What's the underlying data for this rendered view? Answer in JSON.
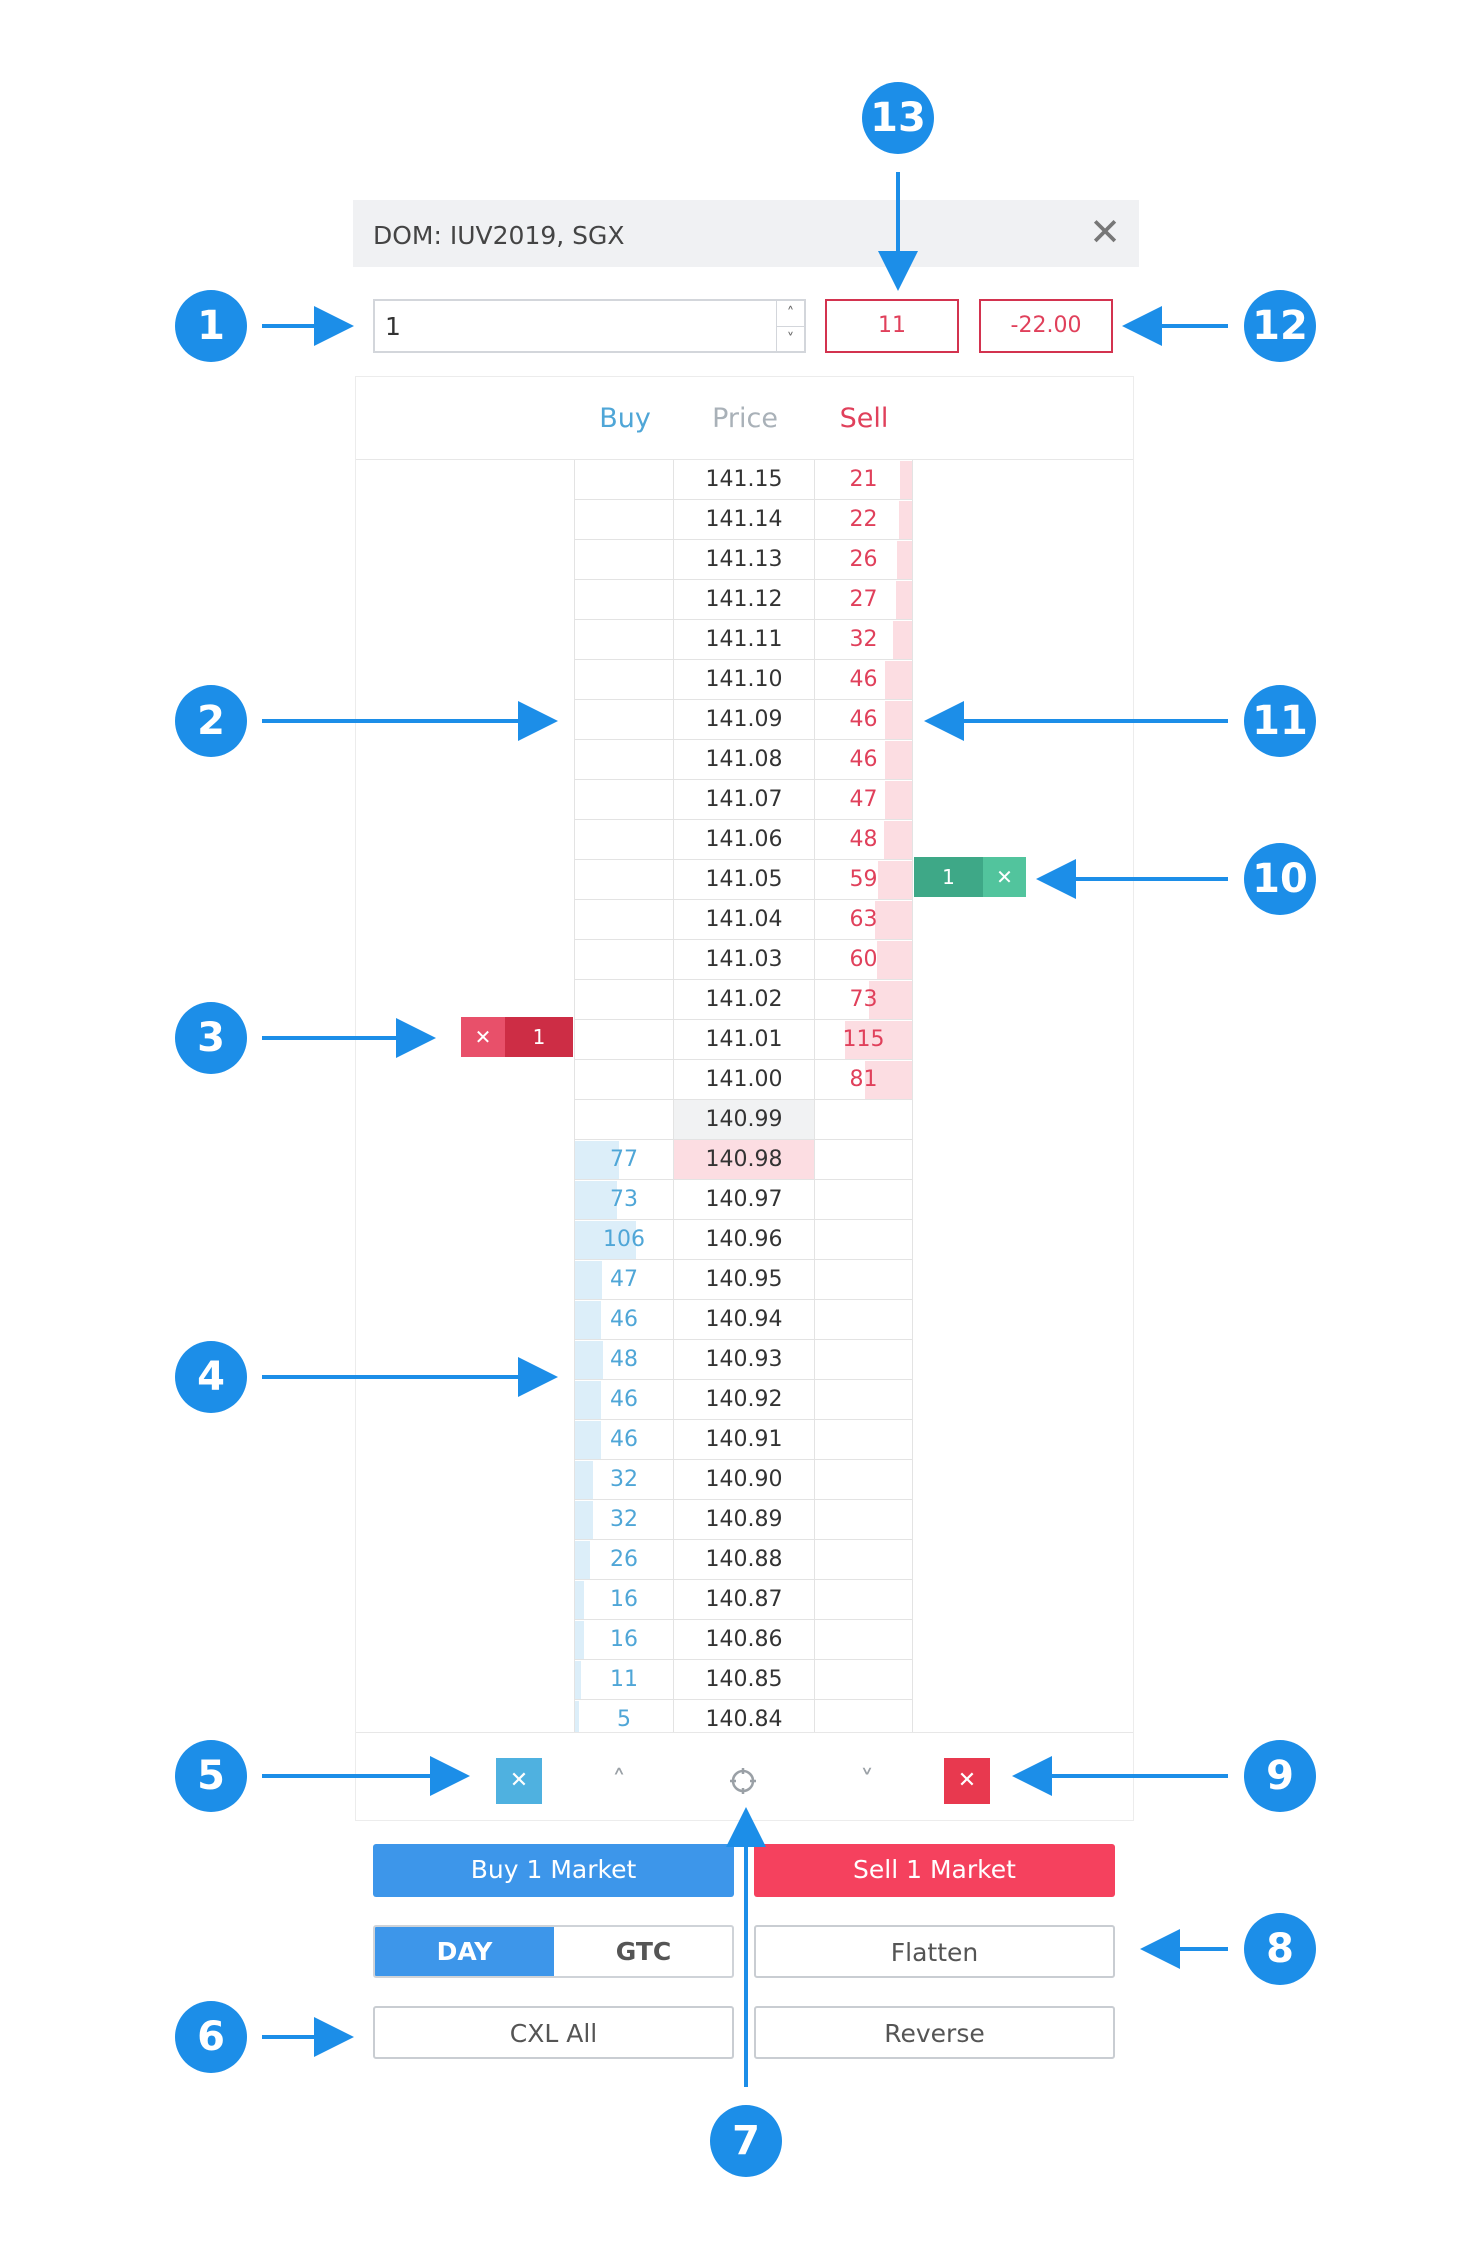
{
  "header": {
    "title": "DOM: IUV2019, SGX",
    "close_icon": "close-icon"
  },
  "quantity": {
    "value": "1",
    "up_icon": "chevron-up-icon",
    "down_icon": "chevron-down-icon"
  },
  "stats": {
    "box_13": "11",
    "box_12": "-22.00"
  },
  "columns": {
    "buy": "Buy",
    "price": "Price",
    "sell": "Sell"
  },
  "rows": [
    {
      "price": "141.15",
      "buy": "",
      "sell": "21"
    },
    {
      "price": "141.14",
      "buy": "",
      "sell": "22"
    },
    {
      "price": "141.13",
      "buy": "",
      "sell": "26"
    },
    {
      "price": "141.12",
      "buy": "",
      "sell": "27"
    },
    {
      "price": "141.11",
      "buy": "",
      "sell": "32"
    },
    {
      "price": "141.10",
      "buy": "",
      "sell": "46"
    },
    {
      "price": "141.09",
      "buy": "",
      "sell": "46"
    },
    {
      "price": "141.08",
      "buy": "",
      "sell": "46"
    },
    {
      "price": "141.07",
      "buy": "",
      "sell": "47"
    },
    {
      "price": "141.06",
      "buy": "",
      "sell": "48"
    },
    {
      "price": "141.05",
      "buy": "",
      "sell": "59"
    },
    {
      "price": "141.04",
      "buy": "",
      "sell": "63"
    },
    {
      "price": "141.03",
      "buy": "",
      "sell": "60"
    },
    {
      "price": "141.02",
      "buy": "",
      "sell": "73"
    },
    {
      "price": "141.01",
      "buy": "",
      "sell": "115"
    },
    {
      "price": "141.00",
      "buy": "",
      "sell": "81"
    },
    {
      "price": "140.99",
      "buy": "",
      "sell": "",
      "highlight": "last"
    },
    {
      "price": "140.98",
      "buy": "77",
      "sell": "",
      "highlight": "pink"
    },
    {
      "price": "140.97",
      "buy": "73",
      "sell": ""
    },
    {
      "price": "140.96",
      "buy": "106",
      "sell": ""
    },
    {
      "price": "140.95",
      "buy": "47",
      "sell": ""
    },
    {
      "price": "140.94",
      "buy": "46",
      "sell": ""
    },
    {
      "price": "140.93",
      "buy": "48",
      "sell": ""
    },
    {
      "price": "140.92",
      "buy": "46",
      "sell": ""
    },
    {
      "price": "140.91",
      "buy": "46",
      "sell": ""
    },
    {
      "price": "140.90",
      "buy": "32",
      "sell": ""
    },
    {
      "price": "140.89",
      "buy": "32",
      "sell": ""
    },
    {
      "price": "140.88",
      "buy": "26",
      "sell": ""
    },
    {
      "price": "140.87",
      "buy": "16",
      "sell": ""
    },
    {
      "price": "140.86",
      "buy": "16",
      "sell": ""
    },
    {
      "price": "140.85",
      "buy": "11",
      "sell": ""
    },
    {
      "price": "140.84",
      "buy": "5",
      "sell": ""
    }
  ],
  "orders": {
    "buy_limit": {
      "qty": "1",
      "price": "141.01",
      "cancel_icon": "close-icon",
      "color": "#cd2d45"
    },
    "sell_limit": {
      "qty": "1",
      "price": "141.05",
      "cancel_icon": "close-icon",
      "color": "#3ea887"
    }
  },
  "toolbar": {
    "cancel_buys_icon": "close-icon",
    "scroll_up_icon": "chevron-up-icon",
    "center_icon": "crosshair-icon",
    "scroll_down_icon": "chevron-down-icon",
    "cancel_sells_icon": "close-icon"
  },
  "buttons": {
    "buy_market": "Buy 1 Market",
    "sell_market": "Sell 1 Market",
    "day": "DAY",
    "gtc": "GTC",
    "flatten": "Flatten",
    "cxl_all": "CXL All",
    "reverse": "Reverse"
  },
  "callouts": [
    "1",
    "2",
    "3",
    "4",
    "5",
    "6",
    "7",
    "8",
    "9",
    "10",
    "11",
    "12",
    "13"
  ],
  "colors": {
    "accent": "#1c8ee8",
    "buy": "#4fa6d7",
    "sell": "#e0405b",
    "buy_button": "#3d96ea",
    "sell_button": "#f5415e"
  }
}
